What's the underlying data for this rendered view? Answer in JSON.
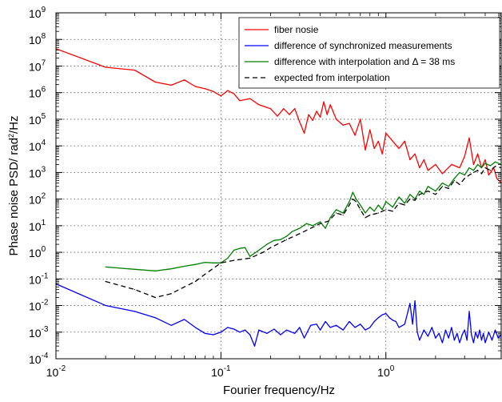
{
  "chart_data": {
    "type": "line",
    "title": "",
    "xlabel": "Fourier frequency/Hz",
    "ylabel_main": "Phase noise PSD/  rad",
    "ylabel_sup": "2",
    "ylabel_tail": "/Hz",
    "xscale": "log",
    "yscale": "log",
    "xlim": [
      0.01,
      5
    ],
    "ylim": [
      0.0001,
      1000000000
    ],
    "grid": true,
    "legend_position": "top-right",
    "x_ticks": [
      {
        "value": 0.01,
        "base": "10",
        "exp": "-2"
      },
      {
        "value": 0.1,
        "base": "10",
        "exp": "-1"
      },
      {
        "value": 1,
        "base": "10",
        "exp": "0"
      }
    ],
    "y_ticks": [
      {
        "value": 0.0001,
        "base": "10",
        "exp": "-4"
      },
      {
        "value": 0.001,
        "base": "10",
        "exp": "-3"
      },
      {
        "value": 0.01,
        "base": "10",
        "exp": "-2"
      },
      {
        "value": 0.1,
        "base": "10",
        "exp": "-1"
      },
      {
        "value": 1,
        "base": "10",
        "exp": "0"
      },
      {
        "value": 10,
        "base": "10",
        "exp": "1"
      },
      {
        "value": 100,
        "base": "10",
        "exp": "2"
      },
      {
        "value": 1000,
        "base": "10",
        "exp": "3"
      },
      {
        "value": 10000,
        "base": "10",
        "exp": "4"
      },
      {
        "value": 100000,
        "base": "10",
        "exp": "5"
      },
      {
        "value": 1000000,
        "base": "10",
        "exp": "6"
      },
      {
        "value": 10000000,
        "base": "10",
        "exp": "7"
      },
      {
        "value": 100000000,
        "base": "10",
        "exp": "8"
      },
      {
        "value": 1000000000,
        "base": "10",
        "exp": "9"
      }
    ],
    "series": [
      {
        "name": "fiber nosie",
        "color": "#ff0000",
        "dash": "solid",
        "points": [
          [
            0.01,
            45000000
          ],
          [
            0.02,
            9000000
          ],
          [
            0.03,
            7000000
          ],
          [
            0.04,
            2500000
          ],
          [
            0.05,
            1900000
          ],
          [
            0.06,
            3000000
          ],
          [
            0.07,
            1700000
          ],
          [
            0.08,
            1400000
          ],
          [
            0.09,
            1100000
          ],
          [
            0.1,
            750000
          ],
          [
            0.11,
            1200000
          ],
          [
            0.12,
            900000
          ],
          [
            0.13,
            500000
          ],
          [
            0.15,
            600000
          ],
          [
            0.17,
            350000
          ],
          [
            0.2,
            250000
          ],
          [
            0.22,
            130000
          ],
          [
            0.24,
            250000
          ],
          [
            0.26,
            150000
          ],
          [
            0.28,
            250000
          ],
          [
            0.3,
            80000
          ],
          [
            0.32,
            30000
          ],
          [
            0.34,
            150000
          ],
          [
            0.36,
            90000
          ],
          [
            0.38,
            200000
          ],
          [
            0.4,
            120000
          ],
          [
            0.42,
            450000
          ],
          [
            0.44,
            150000
          ],
          [
            0.46,
            350000
          ],
          [
            0.5,
            100000
          ],
          [
            0.55,
            60000
          ],
          [
            0.6,
            70000
          ],
          [
            0.65,
            25000
          ],
          [
            0.7,
            100000
          ],
          [
            0.75,
            7000
          ],
          [
            0.8,
            40000
          ],
          [
            0.85,
            8000
          ],
          [
            0.9,
            15000
          ],
          [
            0.95,
            5000
          ],
          [
            1.0,
            30000
          ],
          [
            1.1,
            15000
          ],
          [
            1.2,
            8000
          ],
          [
            1.3,
            15000
          ],
          [
            1.4,
            3000
          ],
          [
            1.5,
            5000
          ],
          [
            1.6,
            1500
          ],
          [
            1.7,
            3000
          ],
          [
            1.8,
            1200
          ],
          [
            2.0,
            2000
          ],
          [
            2.2,
            900
          ],
          [
            2.5,
            2000
          ],
          [
            2.8,
            1500
          ],
          [
            3.0,
            4000
          ],
          [
            3.2,
            20000
          ],
          [
            3.4,
            2000
          ],
          [
            3.6,
            5000
          ],
          [
            3.8,
            1500
          ],
          [
            4.0,
            3000
          ],
          [
            4.2,
            800
          ],
          [
            4.5,
            1500
          ],
          [
            4.7,
            600
          ],
          [
            5.0,
            400
          ]
        ]
      },
      {
        "name": "difference of synchronized measurements",
        "color": "#0000ff",
        "dash": "solid",
        "points": [
          [
            0.01,
            0.065
          ],
          [
            0.02,
            0.01
          ],
          [
            0.03,
            0.006
          ],
          [
            0.04,
            0.0035
          ],
          [
            0.05,
            0.0018
          ],
          [
            0.06,
            0.003
          ],
          [
            0.07,
            0.0015
          ],
          [
            0.08,
            0.0009
          ],
          [
            0.09,
            0.0008
          ],
          [
            0.1,
            0.001
          ],
          [
            0.11,
            0.0015
          ],
          [
            0.12,
            0.0013
          ],
          [
            0.13,
            0.001
          ],
          [
            0.14,
            0.0012
          ],
          [
            0.15,
            0.0008
          ],
          [
            0.16,
            0.0003
          ],
          [
            0.17,
            0.0012
          ],
          [
            0.19,
            0.0009
          ],
          [
            0.21,
            0.0013
          ],
          [
            0.23,
            0.0008
          ],
          [
            0.25,
            0.0012
          ],
          [
            0.28,
            0.0009
          ],
          [
            0.3,
            0.0015
          ],
          [
            0.32,
            0.0006
          ],
          [
            0.35,
            0.0018
          ],
          [
            0.38,
            0.002
          ],
          [
            0.4,
            0.0012
          ],
          [
            0.43,
            0.0025
          ],
          [
            0.46,
            0.0015
          ],
          [
            0.5,
            0.0018
          ],
          [
            0.55,
            0.0012
          ],
          [
            0.6,
            0.0025
          ],
          [
            0.65,
            0.0015
          ],
          [
            0.7,
            0.002
          ],
          [
            0.75,
            0.0012
          ],
          [
            0.8,
            0.0015
          ],
          [
            0.85,
            0.0025
          ],
          [
            0.9,
            0.0035
          ],
          [
            0.95,
            0.0045
          ],
          [
            1.0,
            0.005
          ],
          [
            1.05,
            0.0035
          ],
          [
            1.1,
            0.0028
          ],
          [
            1.15,
            0.0025
          ],
          [
            1.2,
            0.0015
          ],
          [
            1.3,
            0.002
          ],
          [
            1.4,
            0.012
          ],
          [
            1.45,
            0.002
          ],
          [
            1.5,
            0.015
          ],
          [
            1.55,
            0.001
          ],
          [
            1.6,
            0.0005
          ],
          [
            1.7,
            0.0012
          ],
          [
            1.8,
            0.0007
          ],
          [
            1.9,
            0.0015
          ],
          [
            2.0,
            0.0006
          ],
          [
            2.1,
            0.0009
          ],
          [
            2.2,
            0.0004
          ],
          [
            2.3,
            0.0012
          ],
          [
            2.4,
            0.0006
          ],
          [
            2.5,
            0.0015
          ],
          [
            2.6,
            0.0005
          ],
          [
            2.7,
            0.0009
          ],
          [
            2.8,
            0.0004
          ],
          [
            2.9,
            0.0008
          ],
          [
            3.0,
            0.0012
          ],
          [
            3.1,
            0.0005
          ],
          [
            3.2,
            0.006
          ],
          [
            3.3,
            0.0008
          ],
          [
            3.4,
            0.0004
          ],
          [
            3.5,
            0.001
          ],
          [
            3.6,
            0.0006
          ],
          [
            3.7,
            0.0012
          ],
          [
            3.8,
            0.0005
          ],
          [
            3.9,
            0.0009
          ],
          [
            4.0,
            0.0004
          ],
          [
            4.2,
            0.001
          ],
          [
            4.4,
            0.0005
          ],
          [
            4.6,
            0.0012
          ],
          [
            4.8,
            0.0006
          ],
          [
            5.0,
            0.0008
          ]
        ]
      },
      {
        "name": "difference with interpolation and Δ = 38 ms",
        "color": "#008000",
        "dash": "solid",
        "points": [
          [
            0.02,
            0.28
          ],
          [
            0.03,
            0.23
          ],
          [
            0.04,
            0.2
          ],
          [
            0.05,
            0.24
          ],
          [
            0.06,
            0.3
          ],
          [
            0.07,
            0.35
          ],
          [
            0.08,
            0.42
          ],
          [
            0.09,
            0.4
          ],
          [
            0.1,
            0.4
          ],
          [
            0.11,
            0.6
          ],
          [
            0.12,
            1.2
          ],
          [
            0.13,
            1.4
          ],
          [
            0.14,
            1.5
          ],
          [
            0.15,
            0.7
          ],
          [
            0.17,
            1.2
          ],
          [
            0.19,
            2
          ],
          [
            0.21,
            2.8
          ],
          [
            0.23,
            3
          ],
          [
            0.25,
            4
          ],
          [
            0.27,
            6
          ],
          [
            0.3,
            8
          ],
          [
            0.33,
            12
          ],
          [
            0.36,
            10
          ],
          [
            0.4,
            14
          ],
          [
            0.43,
            8
          ],
          [
            0.46,
            20
          ],
          [
            0.5,
            40
          ],
          [
            0.55,
            30
          ],
          [
            0.6,
            80
          ],
          [
            0.63,
            180
          ],
          [
            0.66,
            100
          ],
          [
            0.7,
            60
          ],
          [
            0.75,
            30
          ],
          [
            0.8,
            50
          ],
          [
            0.85,
            35
          ],
          [
            0.9,
            60
          ],
          [
            0.95,
            40
          ],
          [
            1.0,
            80
          ],
          [
            1.1,
            50
          ],
          [
            1.2,
            120
          ],
          [
            1.3,
            70
          ],
          [
            1.4,
            150
          ],
          [
            1.5,
            100
          ],
          [
            1.6,
            200
          ],
          [
            1.7,
            150
          ],
          [
            1.8,
            300
          ],
          [
            2.0,
            200
          ],
          [
            2.2,
            400
          ],
          [
            2.4,
            300
          ],
          [
            2.6,
            600
          ],
          [
            2.8,
            1000
          ],
          [
            3.0,
            800
          ],
          [
            3.2,
            1500
          ],
          [
            3.4,
            1200
          ],
          [
            3.6,
            2000
          ],
          [
            3.8,
            1500
          ],
          [
            4.0,
            2200
          ],
          [
            4.3,
            1800
          ],
          [
            4.6,
            2500
          ],
          [
            5.0,
            2000
          ]
        ]
      },
      {
        "name": "expected from interpolation",
        "color": "#000000",
        "dash": "dashed",
        "points": [
          [
            0.02,
            0.08
          ],
          [
            0.03,
            0.04
          ],
          [
            0.04,
            0.02
          ],
          [
            0.05,
            0.028
          ],
          [
            0.06,
            0.05
          ],
          [
            0.07,
            0.08
          ],
          [
            0.08,
            0.15
          ],
          [
            0.1,
            0.4
          ],
          [
            0.12,
            0.5
          ],
          [
            0.15,
            0.6
          ],
          [
            0.18,
            1
          ],
          [
            0.2,
            1.5
          ],
          [
            0.25,
            3
          ],
          [
            0.3,
            5
          ],
          [
            0.35,
            8
          ],
          [
            0.4,
            12
          ],
          [
            0.45,
            15
          ],
          [
            0.5,
            30
          ],
          [
            0.55,
            25
          ],
          [
            0.6,
            60
          ],
          [
            0.63,
            100
          ],
          [
            0.66,
            80
          ],
          [
            0.7,
            40
          ],
          [
            0.75,
            20
          ],
          [
            0.8,
            25
          ],
          [
            0.9,
            30
          ],
          [
            1.0,
            40
          ],
          [
            1.1,
            35
          ],
          [
            1.2,
            70
          ],
          [
            1.3,
            60
          ],
          [
            1.4,
            100
          ],
          [
            1.5,
            90
          ],
          [
            1.6,
            150
          ],
          [
            1.8,
            200
          ],
          [
            2.0,
            150
          ],
          [
            2.2,
            300
          ],
          [
            2.4,
            250
          ],
          [
            2.6,
            500
          ],
          [
            2.8,
            350
          ],
          [
            3.0,
            600
          ],
          [
            3.2,
            800
          ],
          [
            3.4,
            1000
          ],
          [
            3.6,
            1200
          ],
          [
            3.8,
            900
          ],
          [
            4.0,
            1500
          ],
          [
            4.3,
            1200
          ],
          [
            4.6,
            1700
          ],
          [
            5.0,
            1500
          ]
        ]
      }
    ]
  }
}
